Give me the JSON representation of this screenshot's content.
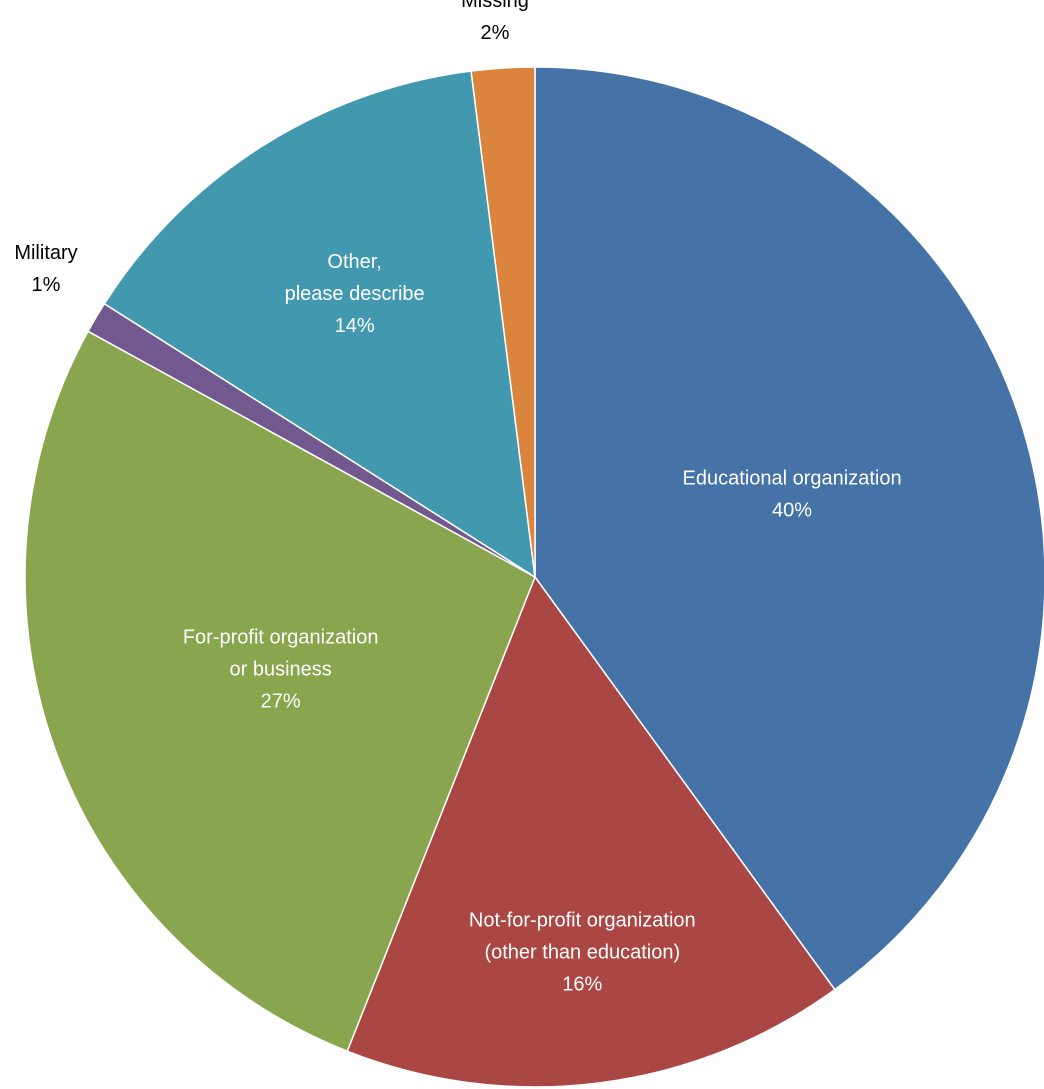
{
  "chart_data": {
    "type": "pie",
    "title": "",
    "slices": [
      {
        "label_lines": [
          "Educational organization"
        ],
        "value": 40,
        "value_label": "40%",
        "color": "#4572A7",
        "label_color": "#ffffff"
      },
      {
        "label_lines": [
          "Not-for-profit organization",
          "(other than education)"
        ],
        "value": 16,
        "value_label": "16%",
        "color": "#AA4643",
        "label_color": "#ffffff"
      },
      {
        "label_lines": [
          "For-profit organization",
          "or business"
        ],
        "value": 27,
        "value_label": "27%",
        "color": "#89A54E",
        "label_color": "#ffffff"
      },
      {
        "label_lines": [
          "Military"
        ],
        "value": 1,
        "value_label": "1%",
        "color": "#71588F",
        "label_color": "#000000"
      },
      {
        "label_lines": [
          "Other,",
          "please describe"
        ],
        "value": 14,
        "value_label": "14%",
        "color": "#4198AF",
        "label_color": "#ffffff"
      },
      {
        "label_lines": [
          "Missing"
        ],
        "value": 2,
        "value_label": "2%",
        "color": "#DB843D",
        "label_color": "#000000"
      }
    ]
  }
}
